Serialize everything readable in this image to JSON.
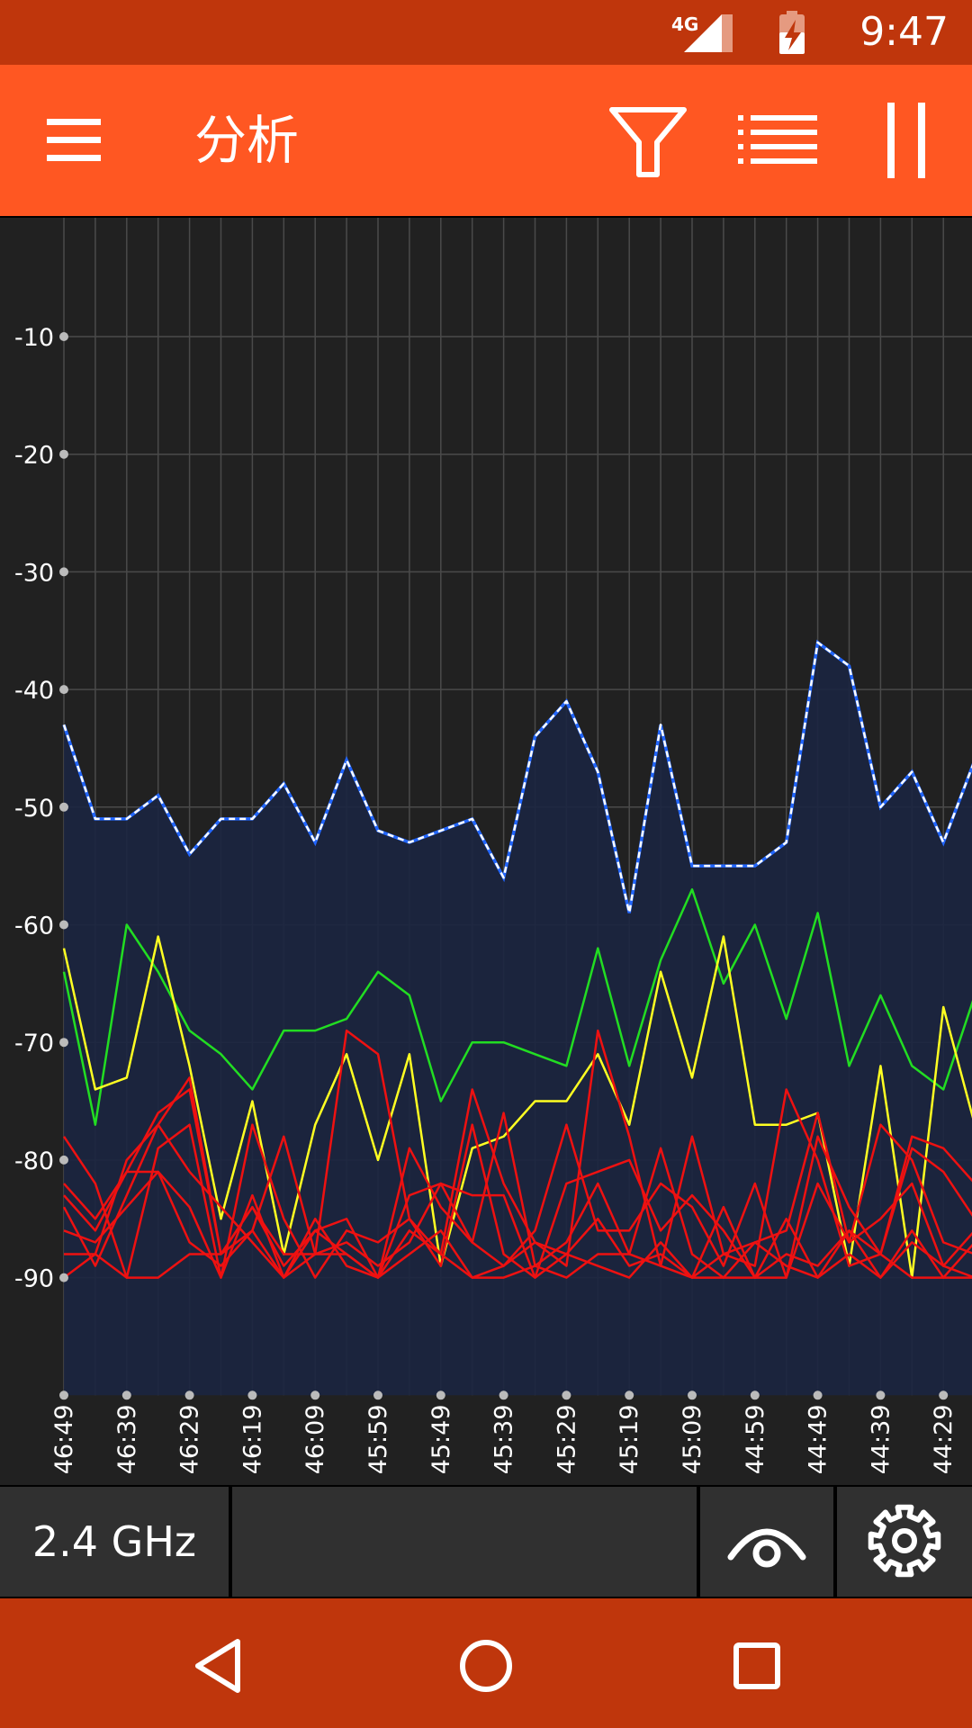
{
  "status_bar": {
    "time": "9:47",
    "network_label": "4G"
  },
  "app_bar": {
    "title": "分析",
    "menu_icon": "hamburger-menu-icon",
    "filter_icon": "filter-funnel-icon",
    "list_icon": "list-icon",
    "pause_icon": "pause-icon"
  },
  "chart_data": {
    "type": "line",
    "y_ticks": [
      -10,
      -20,
      -30,
      -40,
      -50,
      -60,
      -70,
      -80,
      -90
    ],
    "ylim": [
      -100,
      0
    ],
    "x_labels": [
      "46:49",
      "46:39",
      "46:29",
      "46:19",
      "46:09",
      "45:59",
      "45:49",
      "45:39",
      "45:29",
      "45:19",
      "45:09",
      "44:59",
      "44:49",
      "44:39",
      "44:29"
    ],
    "grid": true,
    "series": [
      {
        "color": "#FFFFFF",
        "fill": "#1B2540",
        "dashed": true,
        "values": [
          -43,
          -51,
          -51,
          -49,
          -54,
          -51,
          -51,
          -48,
          -53,
          -46,
          -52,
          -53,
          -52,
          -51,
          -56,
          -44,
          -41,
          -47,
          -59,
          -43,
          -55,
          -55,
          -55,
          -53,
          -36,
          -38,
          -50,
          -47,
          -53,
          -46
        ]
      },
      {
        "color": "#22DD22",
        "values": [
          -64,
          -77,
          -60,
          -64,
          -69,
          -71,
          -74,
          -69,
          -69,
          -68,
          -64,
          -66,
          -75,
          -70,
          -70,
          -71,
          -72,
          -62,
          -72,
          -63,
          -57,
          -65,
          -60,
          -68,
          -59,
          -72,
          -66,
          -72,
          -74,
          -66
        ]
      },
      {
        "color": "#FFFF22",
        "values": [
          -62,
          -74,
          -73,
          -61,
          -72,
          -85,
          -75,
          -88,
          -77,
          -71,
          -80,
          -71,
          -89,
          -79,
          -78,
          -75,
          -75,
          -71,
          -77,
          -64,
          -73,
          -61,
          -77,
          -77,
          -76,
          -89,
          -72,
          -90,
          -67,
          -77
        ]
      },
      {
        "color": "#EE1111",
        "values": [
          -78,
          -82,
          -90,
          -90,
          -88,
          -88,
          -84,
          -88,
          -88,
          -88,
          -90,
          -88,
          -86,
          -90,
          -90,
          -89,
          -90,
          -88,
          -88,
          -89,
          -90,
          -88,
          -87,
          -89,
          -90,
          -88,
          -90,
          -87,
          -89,
          -90
        ]
      },
      {
        "color": "#EE1111",
        "values": [
          -82,
          -85,
          -81,
          -76,
          -74,
          -88,
          -84,
          -89,
          -86,
          -88,
          -90,
          -86,
          -88,
          -90,
          -89,
          -87,
          -88,
          -85,
          -89,
          -88,
          -90,
          -90,
          -90,
          -88,
          -89,
          -86,
          -88,
          -90,
          -90,
          -90
        ]
      },
      {
        "color": "#EE1111",
        "values": [
          -84,
          -89,
          -83,
          -77,
          -73,
          -88,
          -86,
          -90,
          -88,
          -69,
          -71,
          -85,
          -88,
          -74,
          -82,
          -87,
          -89,
          -69,
          -78,
          -89,
          -78,
          -88,
          -89,
          -74,
          -80,
          -89,
          -88,
          -78,
          -79,
          -82
        ]
      },
      {
        "color": "#EE1111",
        "values": [
          -90,
          -88,
          -80,
          -77,
          -81,
          -84,
          -87,
          -90,
          -86,
          -85,
          -90,
          -79,
          -84,
          -87,
          -89,
          -86,
          -77,
          -86,
          -86,
          -82,
          -84,
          -89,
          -82,
          -90,
          -82,
          -87,
          -77,
          -80,
          -87,
          -88
        ]
      },
      {
        "color": "#EE1111",
        "values": [
          -88,
          -88,
          -90,
          -79,
          -77,
          -90,
          -83,
          -90,
          -85,
          -89,
          -90,
          -83,
          -82,
          -83,
          -83,
          -90,
          -82,
          -81,
          -80,
          -86,
          -83,
          -86,
          -90,
          -90,
          -78,
          -84,
          -88,
          -79,
          -81,
          -85
        ]
      },
      {
        "color": "#EE1111",
        "values": [
          -86,
          -87,
          -84,
          -81,
          -87,
          -89,
          -86,
          -78,
          -88,
          -87,
          -89,
          -87,
          -82,
          -87,
          -76,
          -89,
          -87,
          -82,
          -88,
          -79,
          -88,
          -90,
          -87,
          -86,
          -76,
          -87,
          -85,
          -82,
          -89,
          -86
        ]
      },
      {
        "color": "#EE1111",
        "values": [
          -83,
          -86,
          -81,
          -81,
          -84,
          -90,
          -77,
          -85,
          -90,
          -86,
          -87,
          -85,
          -89,
          -77,
          -88,
          -90,
          -88,
          -89,
          -90,
          -87,
          -90,
          -84,
          -90,
          -85,
          -90,
          -86,
          -90,
          -86,
          -90,
          -87
        ]
      }
    ]
  },
  "bottom_bar": {
    "band_label": "2.4 GHz",
    "eye_icon": "eye-visibility-icon",
    "gear_icon": "gear-icon"
  },
  "nav_bar": {
    "back_icon": "back-triangle-icon",
    "home_icon": "home-circle-icon",
    "recents_icon": "recents-square-icon"
  }
}
